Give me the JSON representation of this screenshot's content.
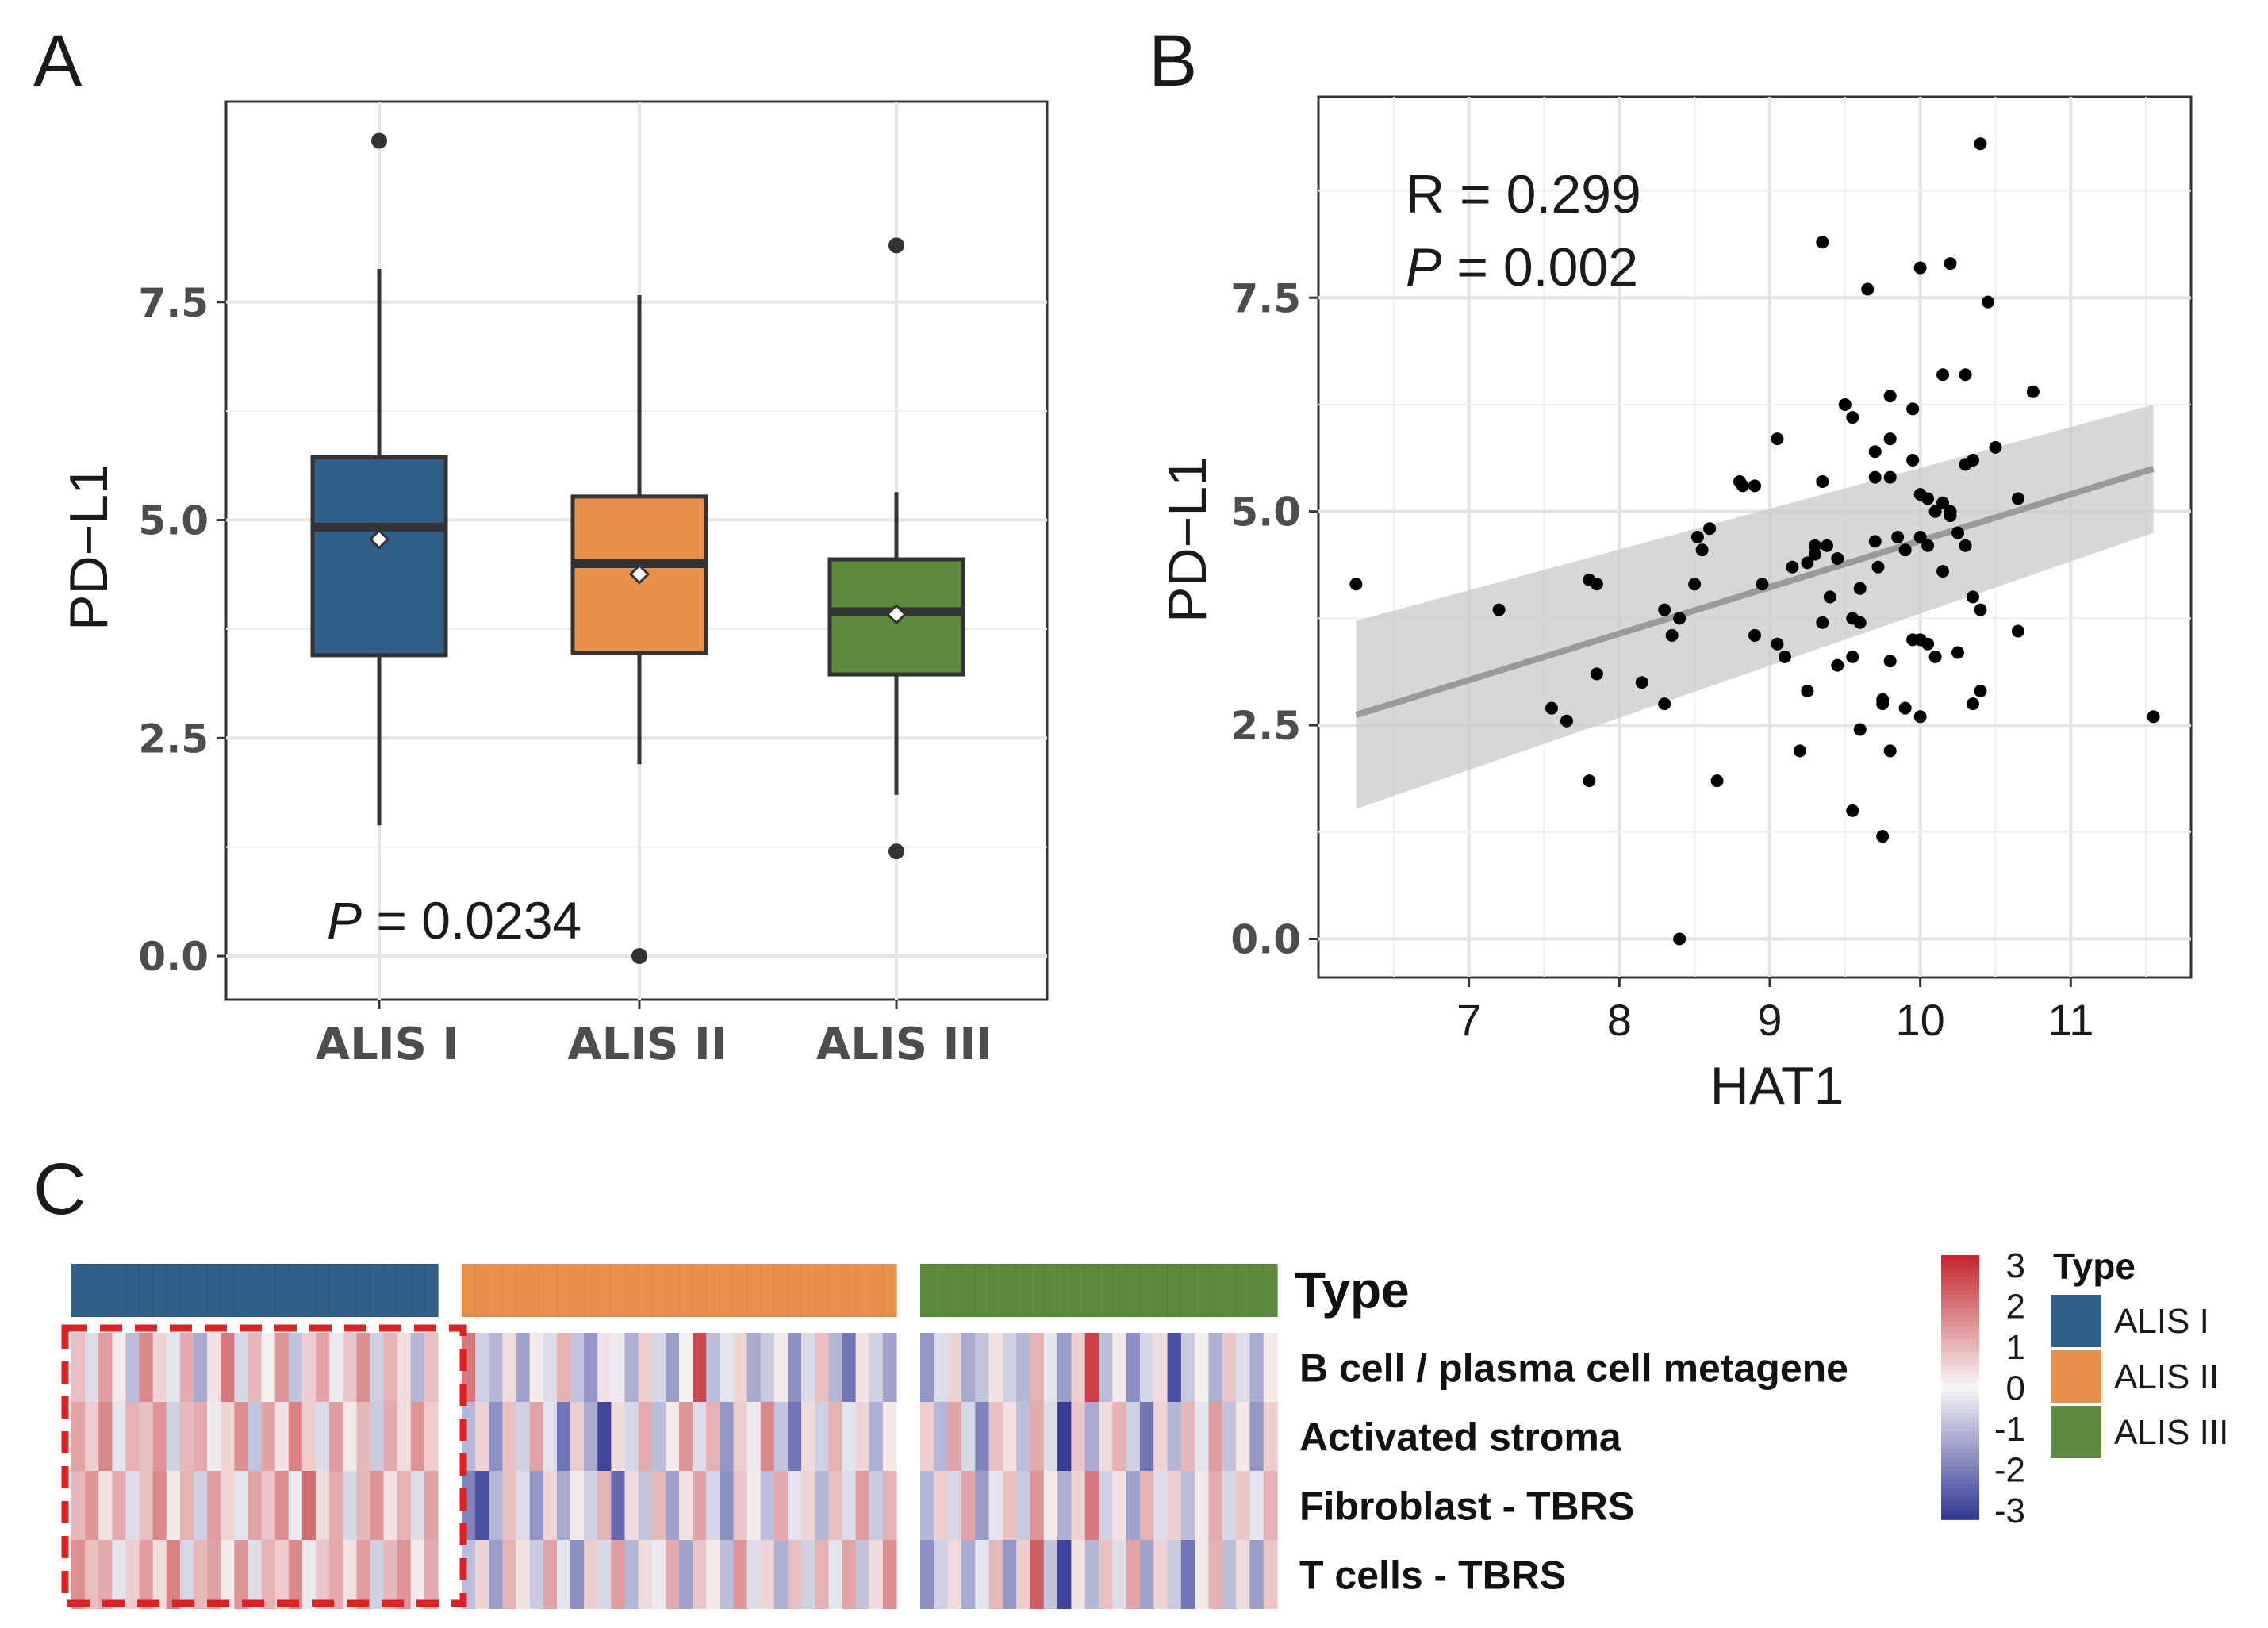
{
  "panel_labels": {
    "a": "A",
    "b": "B",
    "c": "C"
  },
  "colors": {
    "ALIS I": "#2f5f8a",
    "ALIS II": "#e8914a",
    "ALIS III": "#5d8a3c",
    "heat_low": "#313695",
    "heat_mid": "#f7f7f7",
    "heat_high": "#c3262c",
    "points": "#000000",
    "regression": "#9a9a9a",
    "ci": "#c9c9c9",
    "highlight_box": "#e02020"
  },
  "chart_data": [
    {
      "id": "A",
      "type": "box",
      "ylabel": "PD−L1",
      "ylim": [
        -0.5,
        9.8
      ],
      "yticks": [
        0.0,
        2.5,
        5.0,
        7.5
      ],
      "ytick_labels": [
        "0.0",
        "2.5",
        "5.0",
        "7.5"
      ],
      "categories": [
        "ALIS I",
        "ALIS II",
        "ALIS III"
      ],
      "boxes": [
        {
          "name": "ALIS I",
          "q1": 3.45,
          "median": 4.92,
          "q3": 5.72,
          "whisker_low": 1.5,
          "whisker_high": 7.88,
          "mean": 4.78,
          "outliers": [
            9.35
          ]
        },
        {
          "name": "ALIS II",
          "q1": 3.48,
          "median": 4.5,
          "q3": 5.27,
          "whisker_low": 2.2,
          "whisker_high": 7.58,
          "mean": 4.38,
          "outliers": [
            0.0
          ]
        },
        {
          "name": "ALIS III",
          "q1": 3.23,
          "median": 3.95,
          "q3": 4.55,
          "whisker_low": 1.85,
          "whisker_high": 5.32,
          "mean": 3.92,
          "outliers": [
            8.15,
            1.2
          ]
        }
      ],
      "annotation": {
        "italic": "P",
        "text": " = 0.0234"
      }
    },
    {
      "id": "B",
      "type": "scatter",
      "xlabel": "HAT1",
      "ylabel": "PD−L1",
      "xlim": [
        6.0,
        11.8
      ],
      "ylim": [
        -0.45,
        9.85
      ],
      "xticks": [
        7,
        8,
        9,
        10,
        11
      ],
      "xtick_labels": [
        "7",
        "8",
        "9",
        "10",
        "11"
      ],
      "yticks": [
        0.0,
        2.5,
        5.0,
        7.5
      ],
      "ytick_labels": [
        "0.0",
        "2.5",
        "5.0",
        "7.5"
      ],
      "annotation_r": "R = 0.299",
      "annotation_p": {
        "italic": "P",
        "text": " = 0.002"
      },
      "regression": {
        "x0": 6.25,
        "y0": 2.62,
        "x1": 11.55,
        "y1": 5.5,
        "ci_lower": [
          1.52,
          4.75
        ],
        "ci_upper": [
          3.72,
          6.25
        ]
      },
      "points": [
        [
          6.25,
          4.15
        ],
        [
          7.2,
          3.85
        ],
        [
          7.55,
          2.7
        ],
        [
          7.65,
          2.55
        ],
        [
          7.8,
          4.2
        ],
        [
          7.85,
          4.15
        ],
        [
          7.85,
          3.1
        ],
        [
          7.8,
          1.85
        ],
        [
          8.15,
          3.0
        ],
        [
          8.3,
          3.85
        ],
        [
          8.3,
          2.75
        ],
        [
          8.35,
          3.55
        ],
        [
          8.4,
          3.75
        ],
        [
          8.4,
          0.0
        ],
        [
          8.5,
          4.15
        ],
        [
          8.52,
          4.7
        ],
        [
          8.55,
          4.55
        ],
        [
          8.6,
          4.8
        ],
        [
          8.65,
          1.85
        ],
        [
          8.8,
          5.35
        ],
        [
          8.82,
          5.3
        ],
        [
          8.9,
          5.3
        ],
        [
          8.9,
          3.55
        ],
        [
          8.95,
          4.15
        ],
        [
          9.05,
          5.85
        ],
        [
          9.05,
          3.45
        ],
        [
          9.1,
          3.3
        ],
        [
          9.15,
          4.35
        ],
        [
          9.2,
          2.2
        ],
        [
          9.25,
          2.9
        ],
        [
          9.25,
          4.4
        ],
        [
          9.3,
          4.6
        ],
        [
          9.3,
          4.5
        ],
        [
          9.35,
          5.35
        ],
        [
          9.35,
          3.7
        ],
        [
          9.38,
          4.6
        ],
        [
          9.45,
          4.45
        ],
        [
          9.45,
          3.2
        ],
        [
          9.5,
          6.25
        ],
        [
          9.55,
          6.1
        ],
        [
          9.55,
          3.75
        ],
        [
          9.55,
          3.3
        ],
        [
          9.6,
          3.7
        ],
        [
          9.6,
          2.45
        ],
        [
          9.55,
          1.5
        ],
        [
          9.35,
          8.15
        ],
        [
          9.65,
          7.6
        ],
        [
          9.7,
          5.7
        ],
        [
          9.7,
          5.4
        ],
        [
          9.7,
          4.65
        ],
        [
          9.72,
          4.35
        ],
        [
          9.75,
          2.8
        ],
        [
          9.75,
          2.75
        ],
        [
          9.75,
          1.2
        ],
        [
          9.8,
          6.35
        ],
        [
          9.8,
          5.85
        ],
        [
          9.8,
          5.4
        ],
        [
          9.8,
          3.25
        ],
        [
          9.8,
          2.2
        ],
        [
          9.85,
          4.7
        ],
        [
          9.9,
          4.55
        ],
        [
          9.9,
          2.7
        ],
        [
          9.95,
          6.2
        ],
        [
          9.95,
          5.6
        ],
        [
          9.95,
          3.5
        ],
        [
          10.0,
          7.85
        ],
        [
          10.0,
          5.2
        ],
        [
          10.0,
          4.7
        ],
        [
          10.0,
          3.5
        ],
        [
          10.0,
          2.6
        ],
        [
          10.05,
          5.15
        ],
        [
          10.05,
          4.6
        ],
        [
          10.05,
          3.45
        ],
        [
          10.1,
          5.0
        ],
        [
          10.1,
          3.3
        ],
        [
          10.15,
          6.6
        ],
        [
          10.15,
          5.1
        ],
        [
          10.15,
          4.3
        ],
        [
          10.2,
          7.9
        ],
        [
          10.2,
          5.0
        ],
        [
          10.25,
          3.35
        ],
        [
          10.3,
          6.6
        ],
        [
          10.3,
          5.55
        ],
        [
          10.3,
          4.6
        ],
        [
          10.35,
          5.6
        ],
        [
          10.35,
          4.0
        ],
        [
          10.35,
          2.75
        ],
        [
          10.4,
          9.3
        ],
        [
          10.4,
          3.85
        ],
        [
          10.4,
          2.9
        ],
        [
          10.45,
          7.45
        ],
        [
          10.5,
          5.75
        ],
        [
          10.75,
          6.4
        ],
        [
          10.65,
          5.15
        ],
        [
          10.65,
          3.6
        ],
        [
          11.55,
          2.6
        ],
        [
          10.2,
          4.95
        ],
        [
          9.6,
          4.1
        ],
        [
          9.4,
          4.0
        ],
        [
          10.25,
          4.75
        ]
      ]
    },
    {
      "id": "C",
      "type": "heatmap",
      "row_labels": [
        "B cell / plasma cell metagene",
        "Activated stroma",
        "Fibroblast - TBRS",
        "T cells - TBRS"
      ],
      "annotation_label": "Type",
      "groups": [
        {
          "name": "ALIS I",
          "n_columns": 27
        },
        {
          "name": "ALIS II",
          "n_columns": 32
        },
        {
          "name": "ALIS III",
          "n_columns": 26
        }
      ],
      "color_scale": {
        "min": -3,
        "max": 3,
        "ticks": [
          "3",
          "2",
          "1",
          "0",
          "-1",
          "-2",
          "-3"
        ]
      },
      "legend_title": "Type",
      "legend_items": [
        "ALIS I",
        "ALIS II",
        "ALIS III"
      ],
      "values": [
        [
          0.8,
          -0.4,
          1.3,
          0.2,
          -0.9,
          1.6,
          0.5,
          -0.3,
          1.1,
          -1.2,
          0.3,
          1.8,
          -0.5,
          0.9,
          0.1,
          1.4,
          -0.8,
          0.6,
          1.2,
          -0.2,
          0.7,
          1.5,
          -0.6,
          1.0,
          0.4,
          -1.0,
          0.8,
          1.8,
          -0.6,
          -1.0,
          0.4,
          -1.3,
          0.2,
          -0.4,
          1.0,
          -0.8,
          -1.5,
          0.3,
          -0.2,
          -1.1,
          0.6,
          -0.5,
          -1.4,
          0.1,
          2.5,
          -0.9,
          -0.3,
          0.5,
          -1.2,
          -0.7,
          0.2,
          -1.6,
          -0.4,
          0.8,
          -1.0,
          -2.0,
          0.3,
          -0.6,
          -1.3,
          -1.5,
          -0.4,
          0.5,
          -1.2,
          -0.8,
          0.3,
          -0.6,
          -1.0,
          1.0,
          -0.3,
          -1.4,
          0.6,
          2.6,
          -0.9,
          0.2,
          -1.6,
          -0.5,
          0.4,
          -2.6,
          -0.7,
          0.1,
          -1.1,
          0.7,
          -0.4,
          -1.2,
          0.2
        ],
        [
          1.2,
          0.6,
          1.6,
          -0.3,
          1.0,
          0.8,
          1.4,
          -0.6,
          0.9,
          1.1,
          -0.2,
          0.5,
          1.5,
          -0.8,
          1.2,
          0.3,
          1.7,
          0.6,
          -0.4,
          1.3,
          0.2,
          0.9,
          -0.7,
          1.1,
          0.4,
          1.4,
          0.6,
          -1.0,
          0.5,
          -1.6,
          0.8,
          -0.6,
          1.2,
          -0.3,
          -2.0,
          0.6,
          -1.2,
          -2.8,
          0.4,
          -0.5,
          1.1,
          -0.9,
          0.2,
          1.4,
          -0.4,
          1.0,
          -1.5,
          0.6,
          -0.2,
          1.6,
          -0.8,
          -2.0,
          0.4,
          -0.6,
          1.0,
          -0.3,
          0.5,
          -1.1,
          0.2,
          0.6,
          -1.0,
          1.2,
          -0.5,
          -1.8,
          0.8,
          0.3,
          -0.9,
          1.1,
          -0.4,
          -2.9,
          0.7,
          -1.2,
          0.4,
          1.0,
          -0.6,
          -2.0,
          0.5,
          -1.0,
          0.9,
          -0.3,
          1.3,
          -0.8,
          0.2,
          -1.5,
          0.6
        ],
        [
          0.9,
          1.4,
          0.3,
          1.1,
          -0.4,
          0.8,
          1.6,
          0.2,
          1.0,
          -0.6,
          1.3,
          0.5,
          -0.3,
          1.2,
          0.7,
          1.5,
          -0.2,
          2.0,
          0.4,
          1.1,
          -0.5,
          0.9,
          1.4,
          0.3,
          1.0,
          -0.4,
          1.2,
          -1.8,
          -2.6,
          -1.0,
          0.8,
          -0.4,
          -1.5,
          0.5,
          -1.2,
          0.2,
          -0.6,
          1.0,
          -2.2,
          0.4,
          -0.8,
          0.9,
          -1.3,
          0.3,
          1.2,
          -0.5,
          -1.6,
          0.7,
          0.2,
          -0.9,
          1.1,
          -0.3,
          0.5,
          -1.0,
          0.8,
          -0.4,
          1.3,
          -0.7,
          1.0,
          -1.0,
          0.6,
          -0.5,
          1.2,
          -1.4,
          -0.3,
          0.8,
          -0.7,
          1.4,
          0.2,
          -1.1,
          0.5,
          1.8,
          -0.6,
          0.3,
          -1.3,
          1.0,
          -0.4,
          0.6,
          -0.9,
          0.2,
          1.1,
          -0.5,
          0.7,
          -0.3,
          1.0
        ],
        [
          1.5,
          0.8,
          1.1,
          -0.3,
          0.6,
          1.3,
          0.4,
          1.7,
          -0.5,
          0.9,
          1.2,
          0.2,
          1.4,
          -0.4,
          1.0,
          0.6,
          1.6,
          -0.2,
          0.7,
          1.1,
          0.3,
          1.3,
          -0.6,
          0.9,
          1.4,
          0.2,
          1.1,
          -0.9,
          0.5,
          -1.4,
          1.0,
          0.3,
          -0.7,
          1.2,
          -0.3,
          -1.6,
          0.6,
          -0.5,
          1.3,
          -1.0,
          0.4,
          -0.2,
          1.1,
          -1.3,
          0.7,
          0.2,
          -0.9,
          1.4,
          -0.4,
          0.5,
          -1.1,
          0.8,
          -0.6,
          1.0,
          -0.3,
          1.2,
          -0.8,
          0.4,
          1.5,
          -1.6,
          -0.6,
          0.4,
          -1.2,
          -0.3,
          0.9,
          -1.5,
          0.6,
          2.2,
          -0.8,
          -2.8,
          0.3,
          -1.0,
          0.8,
          -0.4,
          1.2,
          -1.3,
          0.5,
          -0.7,
          -2.0,
          0.2,
          1.0,
          -0.9,
          0.4,
          -1.4,
          0.7
        ]
      ]
    }
  ]
}
